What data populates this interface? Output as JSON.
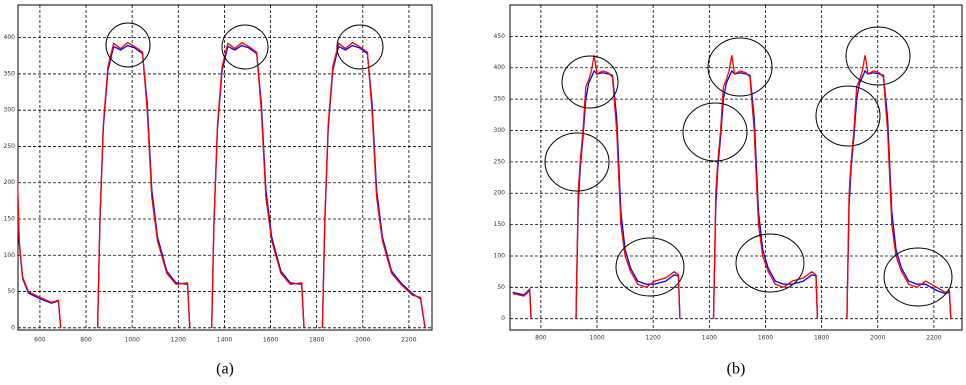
{
  "chart_data": [
    {
      "type": "line",
      "label": "(a)",
      "x": [
        500,
        510,
        525,
        550,
        600,
        650,
        680,
        690,
        770,
        850,
        860,
        875,
        895,
        920,
        950,
        980,
        1010,
        1045,
        1065,
        1085,
        1110,
        1150,
        1190,
        1240,
        1250,
        1300,
        1345,
        1355,
        1370,
        1390,
        1415,
        1445,
        1475,
        1505,
        1540,
        1560,
        1580,
        1605,
        1645,
        1685,
        1735,
        1745,
        1790,
        1825,
        1835,
        1850,
        1870,
        1895,
        1925,
        1955,
        1985,
        2020,
        2040,
        2060,
        2085,
        2125,
        2165,
        2215,
        2250,
        2270
      ],
      "series": [
        {
          "color": "#0000ff",
          "values": [
            235,
            118,
            68,
            48,
            40,
            34,
            37,
            0,
            null,
            0,
            145,
            275,
            355,
            388,
            383,
            389,
            386,
            378,
            310,
            190,
            125,
            78,
            62,
            60,
            0,
            null,
            0,
            145,
            275,
            355,
            388,
            383,
            389,
            386,
            378,
            310,
            190,
            125,
            78,
            62,
            60,
            0,
            null,
            0,
            145,
            275,
            355,
            388,
            383,
            389,
            386,
            378,
            310,
            190,
            125,
            78,
            62,
            47,
            40,
            0
          ]
        },
        {
          "color": "#ff0000",
          "values": [
            240,
            120,
            70,
            50,
            42,
            35,
            38,
            0,
            null,
            0,
            150,
            280,
            360,
            392,
            385,
            393,
            388,
            380,
            300,
            180,
            120,
            75,
            60,
            62,
            0,
            null,
            0,
            150,
            280,
            360,
            392,
            385,
            393,
            388,
            380,
            300,
            180,
            120,
            75,
            60,
            62,
            0,
            null,
            0,
            150,
            280,
            360,
            392,
            385,
            393,
            388,
            380,
            300,
            180,
            120,
            75,
            60,
            45,
            42,
            0
          ]
        }
      ],
      "xlim": [
        505,
        2300
      ],
      "xticks": [
        600,
        800,
        1000,
        1200,
        1400,
        1600,
        1800,
        2000,
        2200
      ],
      "ylim": [
        -3,
        445
      ],
      "yticks": [
        0,
        50,
        100,
        150,
        200,
        250,
        300,
        350,
        400
      ],
      "grid": true
    },
    {
      "type": "line",
      "label": "(b)",
      "x": [
        700,
        720,
        740,
        760,
        765,
        850,
        925,
        933,
        940,
        950,
        960,
        970,
        980,
        990,
        1000,
        1020,
        1040,
        1055,
        1070,
        1085,
        1100,
        1120,
        1145,
        1175,
        1205,
        1245,
        1275,
        1290,
        1295,
        1350,
        1415,
        1423,
        1430,
        1440,
        1450,
        1460,
        1470,
        1480,
        1490,
        1510,
        1530,
        1545,
        1560,
        1575,
        1590,
        1610,
        1635,
        1665,
        1695,
        1735,
        1765,
        1780,
        1785,
        1830,
        1890,
        1898,
        1905,
        1915,
        1925,
        1935,
        1945,
        1955,
        1965,
        1985,
        2005,
        2020,
        2035,
        2050,
        2065,
        2085,
        2110,
        2140,
        2170,
        2210,
        2240,
        2255,
        2260
      ],
      "series": [
        {
          "color": "#0000ff",
          "values": [
            42,
            40,
            38,
            47,
            0,
            null,
            0,
            180,
            240,
            290,
            350,
            375,
            385,
            395,
            390,
            392,
            390,
            388,
            320,
            170,
            110,
            80,
            60,
            55,
            55,
            60,
            70,
            68,
            0,
            null,
            0,
            180,
            240,
            290,
            350,
            375,
            385,
            395,
            390,
            392,
            390,
            388,
            320,
            170,
            110,
            80,
            60,
            55,
            55,
            60,
            70,
            68,
            0,
            null,
            0,
            180,
            240,
            290,
            350,
            375,
            385,
            395,
            390,
            392,
            390,
            388,
            320,
            170,
            110,
            80,
            60,
            55,
            55,
            45,
            40,
            42,
            0
          ]
        },
        {
          "color": "#ff0000",
          "values": [
            40,
            38,
            36,
            45,
            0,
            null,
            0,
            200,
            250,
            300,
            370,
            380,
            395,
            420,
            390,
            395,
            392,
            385,
            300,
            150,
            100,
            75,
            55,
            50,
            60,
            65,
            75,
            70,
            0,
            null,
            0,
            200,
            250,
            300,
            370,
            380,
            395,
            420,
            390,
            395,
            392,
            385,
            300,
            150,
            100,
            75,
            55,
            50,
            60,
            65,
            75,
            70,
            0,
            null,
            0,
            200,
            250,
            300,
            370,
            380,
            395,
            420,
            390,
            395,
            392,
            385,
            300,
            150,
            100,
            75,
            55,
            50,
            60,
            50,
            42,
            45,
            0
          ]
        }
      ],
      "xlim": [
        690,
        2300
      ],
      "xticks": [
        800,
        1000,
        1200,
        1400,
        1600,
        1800,
        2000,
        2200
      ],
      "ylim": [
        -18,
        500
      ],
      "yticks": [
        0,
        50,
        100,
        150,
        200,
        250,
        300,
        350,
        400,
        450
      ],
      "grid": true
    }
  ]
}
